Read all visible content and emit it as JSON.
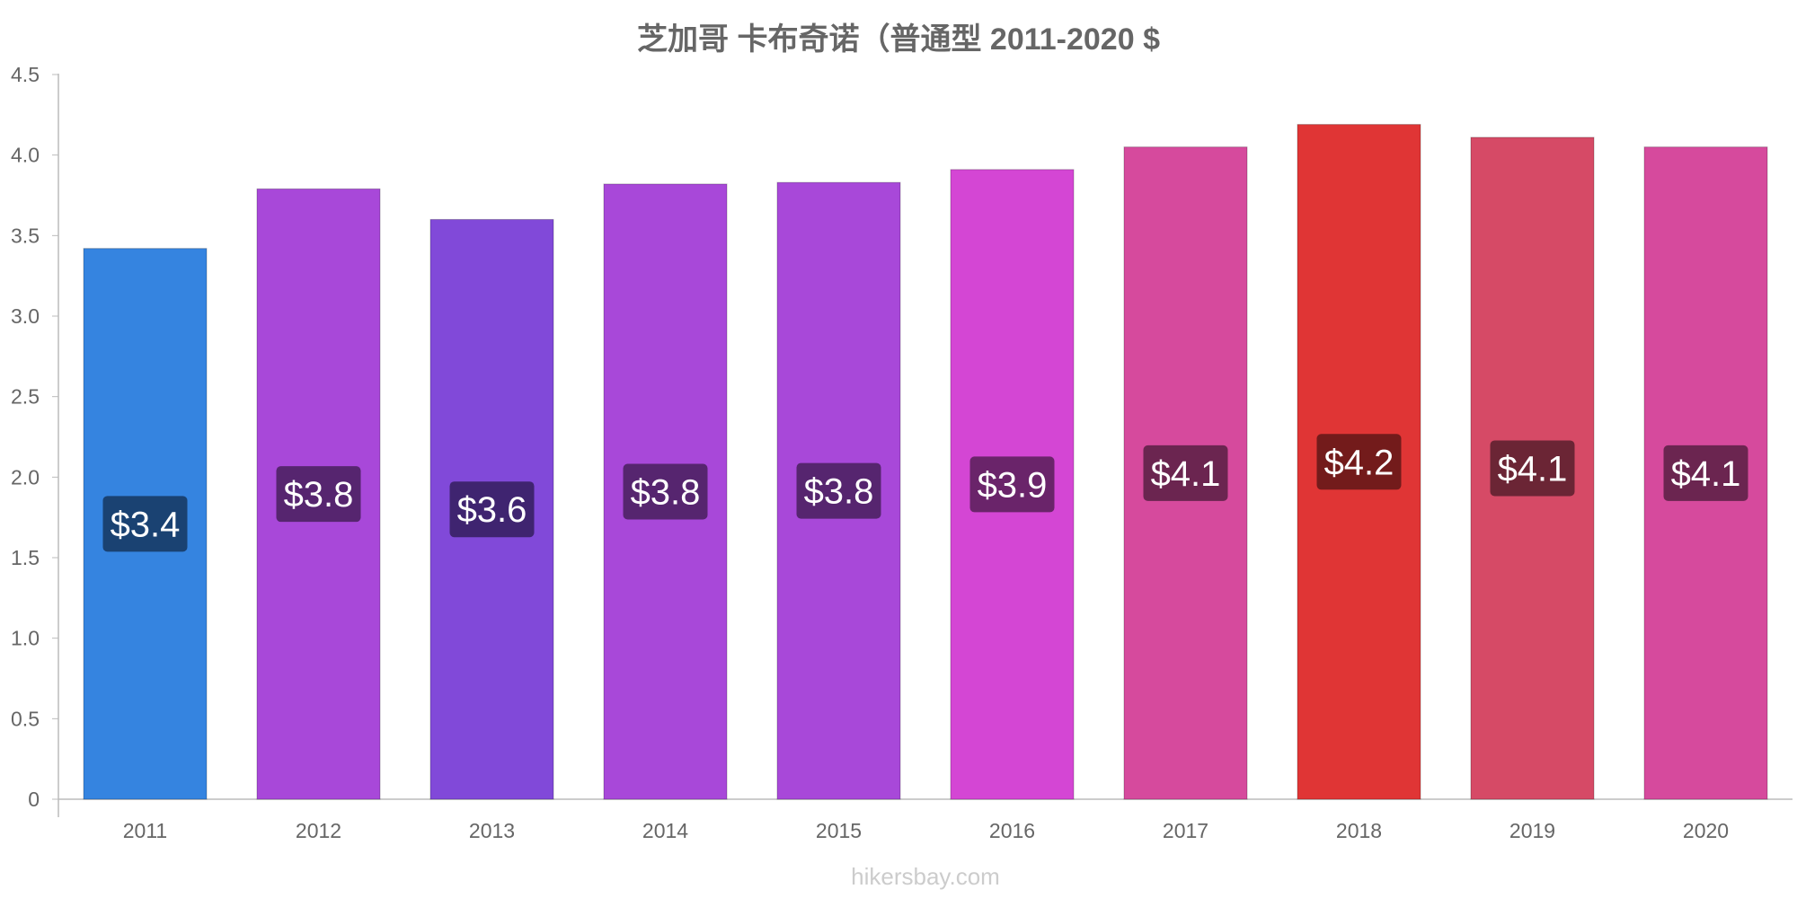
{
  "chart_data": {
    "type": "bar",
    "title": "芝加哥 卡布奇诺（普通型 2011-2020 $",
    "xlabel": "",
    "ylabel": "",
    "categories": [
      "2011",
      "2012",
      "2013",
      "2014",
      "2015",
      "2016",
      "2017",
      "2018",
      "2019",
      "2020"
    ],
    "values": [
      3.42,
      3.79,
      3.6,
      3.82,
      3.83,
      3.91,
      4.05,
      4.19,
      4.11,
      4.05
    ],
    "data_labels": [
      "$3.4",
      "$3.8",
      "$3.6",
      "$3.8",
      "$3.8",
      "$3.9",
      "$4.1",
      "$4.2",
      "$4.1",
      "$4.1"
    ],
    "bar_colors": [
      "#3584e0",
      "#a848d9",
      "#8149d9",
      "#a848d9",
      "#a848d9",
      "#d446d4",
      "#d64a9d",
      "#e03535",
      "#d64a66",
      "#d64a9d"
    ],
    "label_colors": [
      "#1a4272",
      "#56256f",
      "#3f2470",
      "#56256f",
      "#56256f",
      "#6a246a",
      "#6b2550",
      "#731b1b",
      "#6b2535",
      "#6b2550"
    ],
    "ylim": [
      0,
      4.5
    ],
    "yticks": [
      "0",
      "0.5",
      "1.0",
      "1.5",
      "2.0",
      "2.5",
      "3.0",
      "3.5",
      "4.0",
      "4.5"
    ],
    "grid": false,
    "legend": "none"
  },
  "watermark": "hikersbay.com"
}
